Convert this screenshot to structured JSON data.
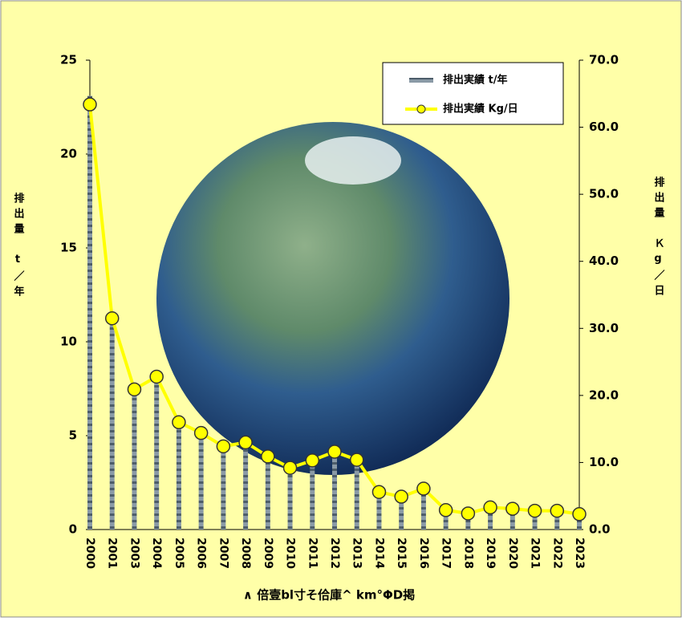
{
  "chart_data": {
    "type": "bar_line",
    "categories": [
      "2000",
      "2001",
      "2003",
      "2004",
      "2005",
      "2006",
      "2007",
      "2008",
      "2009",
      "2010",
      "2011",
      "2012",
      "2013",
      "2014",
      "2015",
      "2016",
      "2017",
      "2018",
      "2019",
      "2020",
      "2021",
      "2022",
      "2023"
    ],
    "series": [
      {
        "name": "排出実績 t/年",
        "type": "bar",
        "color": "#7a8a96",
        "values": [
          23.1,
          11.5,
          7.6,
          8.3,
          5.8,
          5.3,
          4.5,
          4.7,
          4.0,
          3.4,
          3.8,
          4.2,
          3.8,
          2.0,
          1.8,
          2.2,
          1.1,
          0.9,
          1.2,
          1.1,
          1.0,
          1.0,
          0.8
        ]
      },
      {
        "name": "排出実績 Kg/日",
        "type": "line",
        "axis": "y2",
        "color": "#ffff00",
        "values": [
          63.4,
          31.5,
          20.9,
          22.8,
          16.0,
          14.4,
          12.4,
          13.0,
          10.9,
          9.2,
          10.3,
          11.6,
          10.4,
          5.6,
          4.9,
          6.1,
          2.9,
          2.4,
          3.3,
          3.1,
          2.8,
          2.8,
          2.3
        ]
      }
    ],
    "ylim": [
      0,
      25
    ],
    "yticks": [
      0,
      5,
      10,
      15,
      20,
      25
    ],
    "y2lim": [
      0,
      70
    ],
    "y2ticks": [
      {
        "value": 0,
        "label": "0.0"
      },
      {
        "value": 10,
        "label": "10.0"
      },
      {
        "value": 20,
        "label": "20.0"
      },
      {
        "value": 30,
        "label": "30.0"
      },
      {
        "value": 40,
        "label": "40.0"
      },
      {
        "value": 50,
        "label": "50.0"
      },
      {
        "value": 60,
        "label": "60.0"
      },
      {
        "value": 70,
        "label": "70.0"
      }
    ],
    "y_label": "排出量　t／年",
    "y2_label": "排出量　Ｋg／日",
    "x_label": "∧ 倍壹bl寸そ佮庫^ km°ΦD掲",
    "legend": "top-right"
  }
}
